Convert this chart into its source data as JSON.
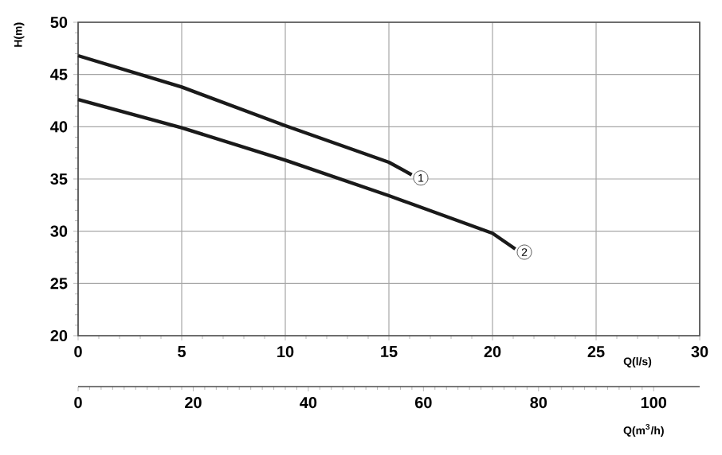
{
  "chart_data": {
    "type": "line",
    "ylabel": "H(m)",
    "xlabel": "Q(l/s)",
    "x2label": "Q(m$^{3}$/h)",
    "xlim": [
      0,
      30
    ],
    "xticks": [
      0,
      5,
      10,
      15,
      20,
      25,
      30
    ],
    "x2lim": [
      0,
      108
    ],
    "x2ticks": [
      0,
      20,
      40,
      60,
      80,
      100
    ],
    "ylim": [
      20,
      50
    ],
    "yticks": [
      20,
      25,
      30,
      35,
      40,
      45,
      50
    ],
    "grid": true,
    "series": [
      {
        "name": "1",
        "color": "#1a1a1a",
        "x": [
          0,
          5,
          10,
          15,
          16.1
        ],
        "values": [
          46.8,
          43.8,
          40.1,
          36.6,
          35.4
        ]
      },
      {
        "name": "2",
        "color": "#1a1a1a",
        "x": [
          0,
          5,
          10,
          15,
          20,
          21.1
        ],
        "values": [
          42.6,
          39.9,
          36.8,
          33.4,
          29.8,
          28.3
        ]
      }
    ]
  }
}
